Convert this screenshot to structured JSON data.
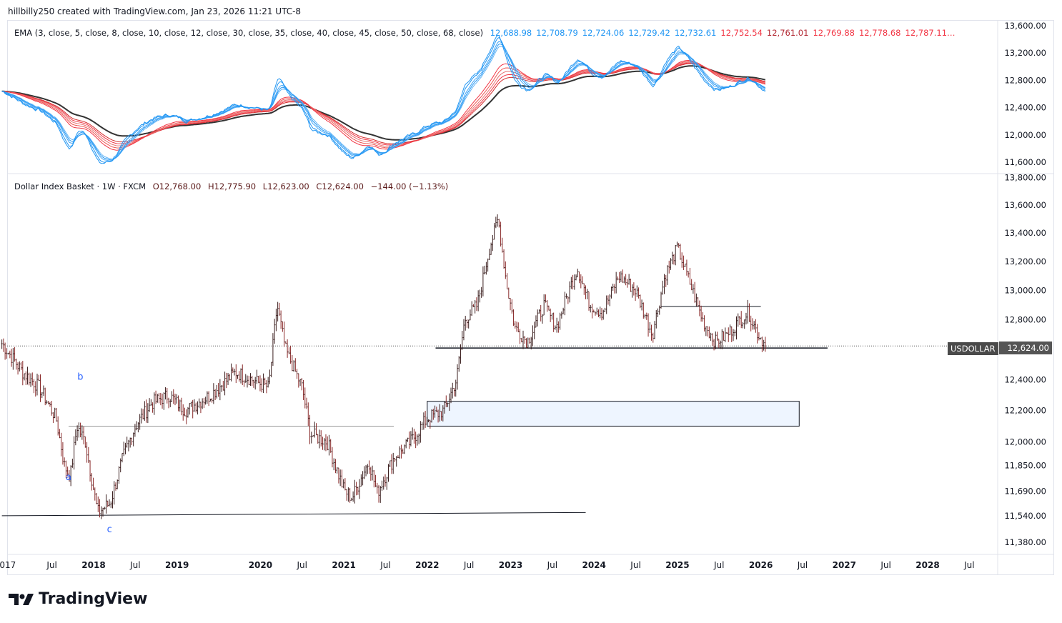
{
  "header": "hillbilly250 created with TradingView.com, Jan 23, 2026 11:21 UTC-8",
  "ema_legend": {
    "title": "EMA (3, close, 5, close, 8, close, 10, close, 12, close, 30, close, 35, close, 40, close, 45, close, 50, close, 68, close)",
    "values": [
      {
        "v": "12,688.98",
        "c": "#2196f3"
      },
      {
        "v": "12,708.79",
        "c": "#2196f3"
      },
      {
        "v": "12,724.06",
        "c": "#2196f3"
      },
      {
        "v": "12,729.42",
        "c": "#2196f3"
      },
      {
        "v": "12,732.61",
        "c": "#2196f3"
      },
      {
        "v": "12,752.54",
        "c": "#f23645"
      },
      {
        "v": "12,761.01",
        "c": "#b22833"
      },
      {
        "v": "12,769.88",
        "c": "#f23645"
      },
      {
        "v": "12,778.68",
        "c": "#f23645"
      },
      {
        "v": "12,787.11…",
        "c": "#f23645"
      }
    ]
  },
  "main_legend": {
    "symbol": "Dollar Index Basket · 1W · FXCM",
    "open": "O12,768.00",
    "high": "H12,775.90",
    "low": "L12,623.00",
    "close": "C12,624.00",
    "change": "−144.00 (−1.13%)"
  },
  "price_tag": {
    "symbol": "USDOLLAR",
    "price": "12,624.00"
  },
  "logo": "TradingView",
  "chart_data": {
    "type": "candlestick",
    "title": "Dollar Index Basket · 1W · FXCM",
    "y_scale": "log",
    "ylim": [
      11300,
      13850
    ],
    "y_ticks": [
      "13,800.00",
      "13,600.00",
      "13,400.00",
      "13,200.00",
      "13,000.00",
      "12,800.00",
      "12,400.00",
      "12,200.00",
      "12,000.00",
      "11,850.00",
      "11,690.00",
      "11,540.00",
      "11,380.00"
    ],
    "y_tick_values": [
      13800,
      13600,
      13400,
      13200,
      13000,
      12800,
      12400,
      12200,
      12000,
      11850,
      11690,
      11540,
      11380
    ],
    "ema_y_ticks": [
      "13,600.00",
      "13,200.00",
      "12,800.00",
      "12,400.00",
      "12,000.00",
      "11,600.00"
    ],
    "ema_y_tick_values": [
      13600,
      13200,
      12800,
      12400,
      12000,
      11600
    ],
    "x_ticks": [
      {
        "t": 2016.97,
        "l": "017"
      },
      {
        "t": 2017.5,
        "l": "Jul"
      },
      {
        "t": 2018,
        "l": "2018"
      },
      {
        "t": 2018.5,
        "l": "Jul"
      },
      {
        "t": 2019,
        "l": "2019"
      },
      {
        "t": 2020,
        "l": "2020"
      },
      {
        "t": 2020.5,
        "l": "Jul"
      },
      {
        "t": 2021,
        "l": "2021"
      },
      {
        "t": 2021.5,
        "l": "Jul"
      },
      {
        "t": 2022,
        "l": "2022"
      },
      {
        "t": 2022.5,
        "l": "Jul"
      },
      {
        "t": 2023,
        "l": "2023"
      },
      {
        "t": 2023.5,
        "l": "Jul"
      },
      {
        "t": 2024,
        "l": "2024"
      },
      {
        "t": 2024.5,
        "l": "Jul"
      },
      {
        "t": 2025,
        "l": "2025"
      },
      {
        "t": 2025.5,
        "l": "Jul"
      },
      {
        "t": 2026,
        "l": "2026"
      },
      {
        "t": 2026.5,
        "l": "Jul"
      },
      {
        "t": 2027,
        "l": "2027"
      },
      {
        "t": 2027.5,
        "l": "Jul"
      },
      {
        "t": 2028,
        "l": "2028"
      },
      {
        "t": 2028.5,
        "l": "Jul"
      }
    ],
    "price_path": [
      [
        2016.9,
        12640
      ],
      [
        2017.15,
        12450
      ],
      [
        2017.35,
        12350
      ],
      [
        2017.55,
        12150
      ],
      [
        2017.65,
        11850
      ],
      [
        2017.72,
        11780
      ],
      [
        2017.8,
        12100
      ],
      [
        2017.9,
        12000
      ],
      [
        2018.0,
        11700
      ],
      [
        2018.05,
        11560
      ],
      [
        2018.2,
        11620
      ],
      [
        2018.35,
        11900
      ],
      [
        2018.5,
        12100
      ],
      [
        2018.7,
        12250
      ],
      [
        2018.9,
        12300
      ],
      [
        2019.1,
        12200
      ],
      [
        2019.4,
        12300
      ],
      [
        2019.7,
        12450
      ],
      [
        2019.9,
        12400
      ],
      [
        2020.1,
        12350
      ],
      [
        2020.2,
        12900
      ],
      [
        2020.3,
        12600
      ],
      [
        2020.5,
        12350
      ],
      [
        2020.6,
        12050
      ],
      [
        2020.8,
        12000
      ],
      [
        2021.0,
        11700
      ],
      [
        2021.1,
        11650
      ],
      [
        2021.3,
        11880
      ],
      [
        2021.4,
        11680
      ],
      [
        2021.6,
        11900
      ],
      [
        2021.8,
        12000
      ],
      [
        2022.0,
        12150
      ],
      [
        2022.2,
        12200
      ],
      [
        2022.35,
        12400
      ],
      [
        2022.45,
        12800
      ],
      [
        2022.6,
        12900
      ],
      [
        2022.75,
        13300
      ],
      [
        2022.85,
        13500
      ],
      [
        2022.95,
        13050
      ],
      [
        2023.05,
        12750
      ],
      [
        2023.2,
        12650
      ],
      [
        2023.4,
        12900
      ],
      [
        2023.55,
        12750
      ],
      [
        2023.7,
        13000
      ],
      [
        2023.8,
        13150
      ],
      [
        2023.95,
        12900
      ],
      [
        2024.1,
        12850
      ],
      [
        2024.3,
        13100
      ],
      [
        2024.5,
        13000
      ],
      [
        2024.7,
        12700
      ],
      [
        2024.85,
        13100
      ],
      [
        2025.0,
        13300
      ],
      [
        2025.15,
        13050
      ],
      [
        2025.3,
        12800
      ],
      [
        2025.45,
        12650
      ],
      [
        2025.6,
        12700
      ],
      [
        2025.75,
        12800
      ],
      [
        2025.85,
        12850
      ],
      [
        2025.95,
        12720
      ],
      [
        2026.06,
        12624
      ]
    ],
    "last_close": 12624,
    "ema_periods": [
      3,
      5,
      8,
      10,
      12,
      30,
      35,
      40,
      45,
      50,
      68
    ],
    "annotations": [
      {
        "text": "a",
        "t": 2017.7,
        "p": 11760
      },
      {
        "text": "b",
        "t": 2017.84,
        "p": 12400
      },
      {
        "text": "c",
        "t": 2018.19,
        "p": 11440
      }
    ],
    "lines": [
      {
        "t1": 2016.9,
        "p1": 11540,
        "t2": 2023.9,
        "p2": 11560
      },
      {
        "t1": 2017.7,
        "p1": 12100,
        "t2": 2021.6,
        "p2": 12100
      },
      {
        "t1": 2022.1,
        "p1": 12610,
        "t2": 2026.8,
        "p2": 12610
      },
      {
        "t1": 2024.8,
        "p1": 12890,
        "t2": 2026.0,
        "p2": 12890
      }
    ],
    "zone": {
      "t1": 2022.0,
      "t2": 2026.46,
      "p_top": 12260,
      "p_bottom": 12100
    }
  }
}
